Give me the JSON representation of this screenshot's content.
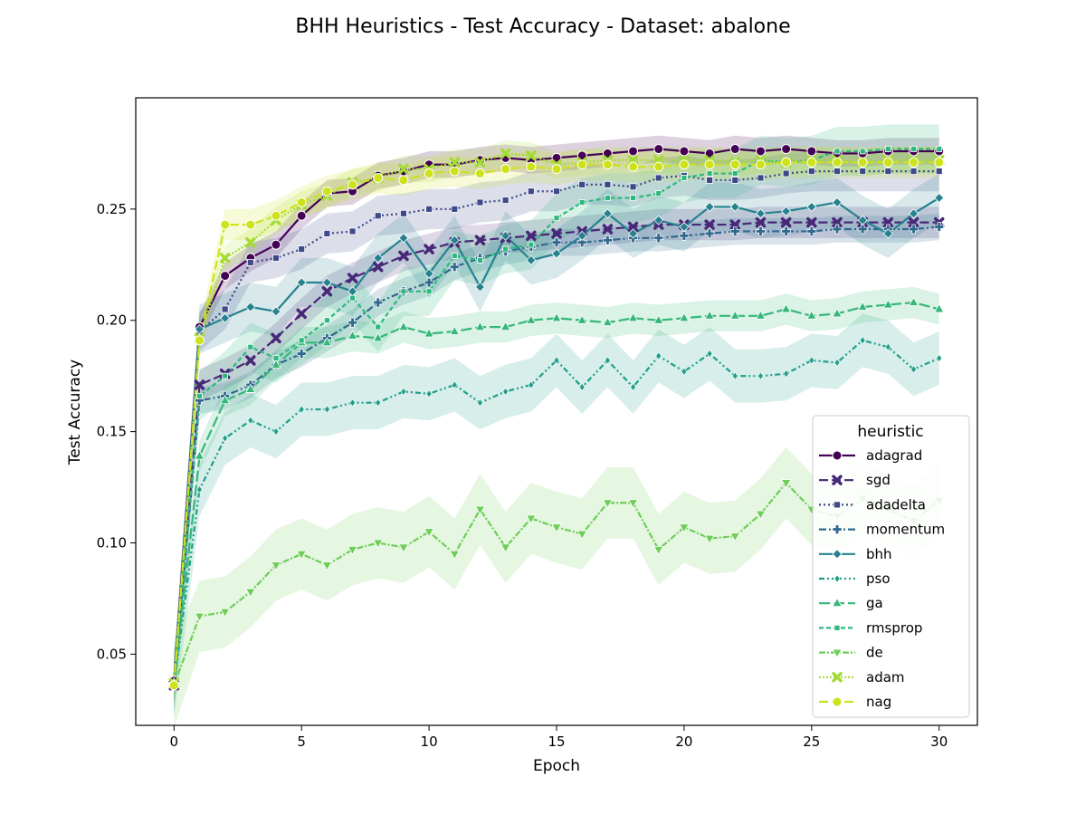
{
  "chart_data": {
    "type": "line",
    "title": "BHH Heuristics - Test Accuracy - Dataset: abalone",
    "xlabel": "Epoch",
    "ylabel": "Test Accuracy",
    "xlim": [
      -1.5,
      31.5
    ],
    "ylim": [
      0.018,
      0.3
    ],
    "xticks": [
      0,
      5,
      10,
      15,
      20,
      25,
      30
    ],
    "yticks": [
      0.05,
      0.1,
      0.15,
      0.2,
      0.25
    ],
    "ytick_labels": [
      "0.05",
      "0.10",
      "0.15",
      "0.20",
      "0.25"
    ],
    "grid": false,
    "legend": {
      "title": "heuristic",
      "placement": "lower-right"
    },
    "x": [
      0,
      1,
      2,
      3,
      4,
      5,
      6,
      7,
      8,
      9,
      10,
      11,
      12,
      13,
      14,
      15,
      16,
      17,
      18,
      19,
      20,
      21,
      22,
      23,
      24,
      25,
      26,
      27,
      28,
      29,
      30
    ],
    "series": [
      {
        "name": "adagrad",
        "color": "#440154",
        "dash": "",
        "marker": "circle",
        "values": [
          0.038,
          0.197,
          0.22,
          0.228,
          0.234,
          0.247,
          0.257,
          0.258,
          0.265,
          0.267,
          0.27,
          0.27,
          0.272,
          0.273,
          0.272,
          0.273,
          0.274,
          0.275,
          0.276,
          0.277,
          0.276,
          0.275,
          0.277,
          0.276,
          0.277,
          0.276,
          0.275,
          0.275,
          0.276,
          0.276,
          0.276
        ],
        "band": 0.006
      },
      {
        "name": "sgd",
        "color": "#482878",
        "dash": "10,4",
        "marker": "x",
        "values": [
          0.036,
          0.171,
          0.176,
          0.182,
          0.192,
          0.203,
          0.213,
          0.219,
          0.224,
          0.229,
          0.232,
          0.235,
          0.236,
          0.237,
          0.238,
          0.239,
          0.24,
          0.241,
          0.242,
          0.243,
          0.243,
          0.243,
          0.243,
          0.244,
          0.244,
          0.244,
          0.244,
          0.244,
          0.244,
          0.244,
          0.244
        ],
        "band": 0.007
      },
      {
        "name": "adadelta",
        "color": "#3e4989",
        "dash": "2,3",
        "marker": "square",
        "values": [
          0.036,
          0.195,
          0.205,
          0.226,
          0.228,
          0.232,
          0.239,
          0.24,
          0.247,
          0.248,
          0.25,
          0.25,
          0.253,
          0.254,
          0.258,
          0.258,
          0.261,
          0.261,
          0.26,
          0.264,
          0.265,
          0.263,
          0.263,
          0.264,
          0.266,
          0.267,
          0.267,
          0.267,
          0.267,
          0.267,
          0.267
        ],
        "band": 0.009
      },
      {
        "name": "momentum",
        "color": "#31688e",
        "dash": "8,3,2,3",
        "marker": "plus",
        "values": [
          0.036,
          0.164,
          0.166,
          0.171,
          0.18,
          0.185,
          0.192,
          0.199,
          0.208,
          0.213,
          0.217,
          0.224,
          0.228,
          0.231,
          0.233,
          0.235,
          0.235,
          0.236,
          0.237,
          0.237,
          0.238,
          0.239,
          0.24,
          0.24,
          0.24,
          0.24,
          0.241,
          0.241,
          0.241,
          0.241,
          0.242
        ],
        "band": 0.006
      },
      {
        "name": "bhh",
        "color": "#26828e",
        "dash": "",
        "marker": "diamond",
        "values": [
          0.036,
          0.196,
          0.201,
          0.206,
          0.204,
          0.217,
          0.217,
          0.213,
          0.228,
          0.237,
          0.221,
          0.236,
          0.215,
          0.238,
          0.227,
          0.23,
          0.238,
          0.248,
          0.239,
          0.245,
          0.242,
          0.251,
          0.251,
          0.248,
          0.249,
          0.251,
          0.253,
          0.245,
          0.239,
          0.248,
          0.255
        ],
        "band": 0.011
      },
      {
        "name": "pso",
        "color": "#1f9e89",
        "dash": "6,3,2,3,2,3",
        "marker": "small-diamond",
        "values": [
          0.036,
          0.124,
          0.147,
          0.155,
          0.15,
          0.16,
          0.16,
          0.163,
          0.163,
          0.168,
          0.167,
          0.171,
          0.163,
          0.168,
          0.171,
          0.182,
          0.17,
          0.182,
          0.17,
          0.184,
          0.177,
          0.185,
          0.175,
          0.175,
          0.176,
          0.182,
          0.181,
          0.191,
          0.188,
          0.178,
          0.183
        ],
        "band": 0.012
      },
      {
        "name": "ga",
        "color": "#35b779",
        "dash": "12,4",
        "marker": "triangle-up",
        "values": [
          0.037,
          0.139,
          0.164,
          0.169,
          0.18,
          0.19,
          0.19,
          0.193,
          0.192,
          0.197,
          0.194,
          0.195,
          0.197,
          0.197,
          0.2,
          0.201,
          0.2,
          0.199,
          0.201,
          0.2,
          0.201,
          0.202,
          0.202,
          0.202,
          0.205,
          0.202,
          0.203,
          0.206,
          0.207,
          0.208,
          0.205
        ],
        "band": 0.007
      },
      {
        "name": "rmsprop",
        "color": "#2db87d",
        "dash": "5,3",
        "marker": "small-square",
        "values": [
          0.037,
          0.166,
          0.175,
          0.188,
          0.183,
          0.191,
          0.2,
          0.21,
          0.197,
          0.213,
          0.213,
          0.229,
          0.227,
          0.232,
          0.234,
          0.246,
          0.253,
          0.255,
          0.255,
          0.257,
          0.264,
          0.266,
          0.266,
          0.272,
          0.271,
          0.272,
          0.276,
          0.276,
          0.277,
          0.277,
          0.277
        ],
        "band": 0.011
      },
      {
        "name": "de",
        "color": "#6ece58",
        "dash": "7,2,2,2",
        "marker": "triangle-down",
        "values": [
          0.036,
          0.067,
          0.069,
          0.078,
          0.09,
          0.095,
          0.09,
          0.097,
          0.1,
          0.098,
          0.105,
          0.095,
          0.115,
          0.098,
          0.111,
          0.107,
          0.104,
          0.118,
          0.118,
          0.097,
          0.107,
          0.102,
          0.103,
          0.113,
          0.127,
          0.115,
          0.112,
          0.12,
          0.115,
          0.11,
          0.119
        ],
        "band": 0.016
      },
      {
        "name": "adam",
        "color": "#a5db36",
        "dash": "2,2",
        "marker": "x",
        "values": [
          0.037,
          0.192,
          0.228,
          0.235,
          0.245,
          0.252,
          0.256,
          0.262,
          0.264,
          0.268,
          0.268,
          0.271,
          0.271,
          0.275,
          0.274,
          0.27,
          0.271,
          0.272,
          0.272,
          0.272,
          0.272,
          0.272,
          0.271,
          0.272,
          0.271,
          0.272,
          0.272,
          0.271,
          0.272,
          0.272,
          0.272
        ],
        "band": 0.006
      },
      {
        "name": "nag",
        "color": "#cde11d",
        "dash": "10,4",
        "marker": "circle",
        "values": [
          0.036,
          0.191,
          0.243,
          0.243,
          0.247,
          0.253,
          0.258,
          0.261,
          0.264,
          0.263,
          0.266,
          0.267,
          0.266,
          0.268,
          0.269,
          0.268,
          0.27,
          0.27,
          0.269,
          0.269,
          0.27,
          0.27,
          0.27,
          0.27,
          0.271,
          0.271,
          0.271,
          0.271,
          0.271,
          0.271,
          0.271
        ],
        "band": 0.007
      }
    ]
  }
}
